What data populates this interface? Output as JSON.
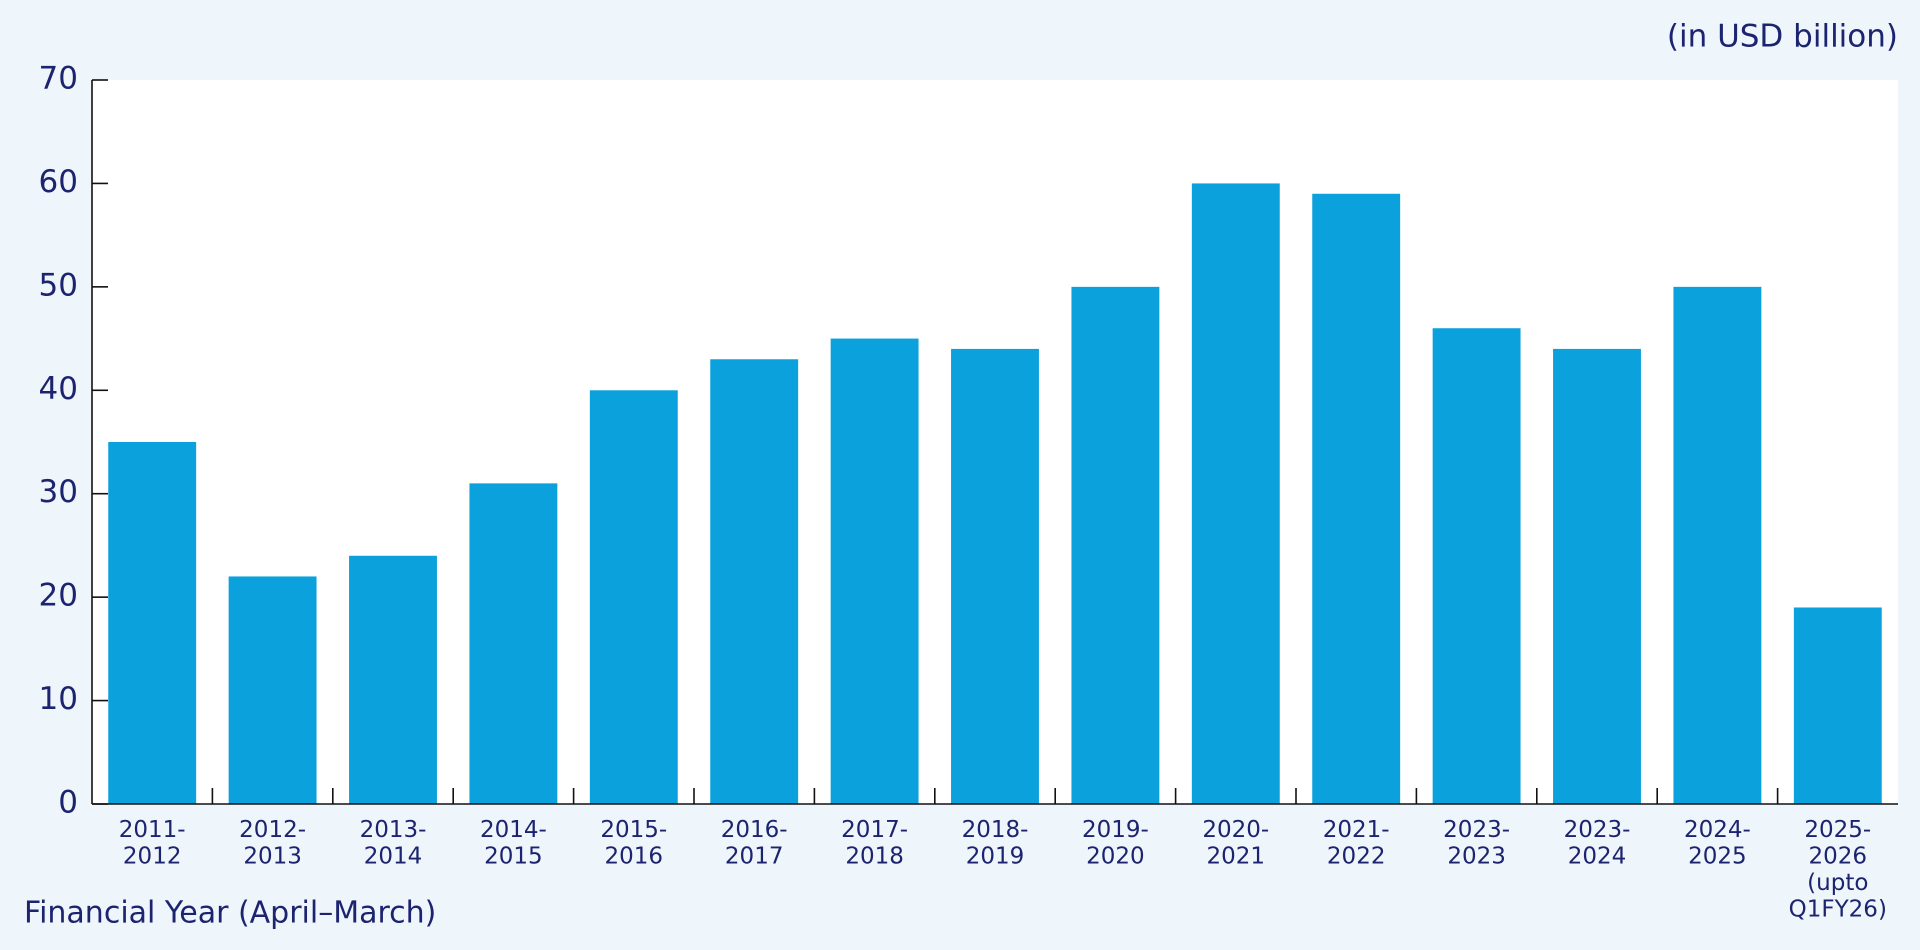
{
  "chart_data": {
    "type": "bar",
    "subtitle": "(in USD billion)",
    "x_label": "Financial Year (April–March)",
    "categories": [
      "2011-\n2012",
      "2012-\n2013",
      "2013-\n2014",
      "2014-\n2015",
      "2015-\n2016",
      "2016-\n2017",
      "2017-\n2018",
      "2018-\n2019",
      "2019-\n2020",
      "2020-\n2021",
      "2021-\n2022",
      "2023-\n2023",
      "2023-\n2024",
      "2024-\n2025",
      "2025-\n2026\n(upto\nQ1FY26)"
    ],
    "values": [
      35,
      22,
      24,
      31,
      40,
      43,
      45,
      44,
      50,
      60,
      59,
      46,
      44,
      50,
      19
    ],
    "color": "#0ba1dc",
    "ylim": [
      0,
      70
    ],
    "yticks": [
      0,
      10,
      20,
      30,
      40,
      50,
      60,
      70
    ],
    "grid": false
  }
}
